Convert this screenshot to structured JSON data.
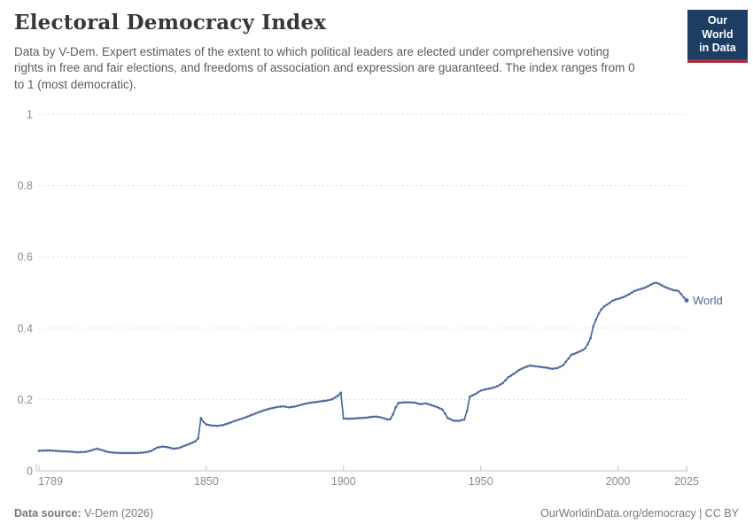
{
  "header": {
    "title": "Electoral Democracy Index",
    "subtitle": "Data by V-Dem. Expert estimates of the extent to which political leaders are elected under comprehensive voting rights in free and fair elections, and freedoms of association and expression are guaranteed. The index ranges from 0 to 1 (most democratic)."
  },
  "logo": {
    "line1": "Our World",
    "line2": "in Data"
  },
  "footer": {
    "source_label": "Data source:",
    "source_value": "V-Dem (2026)",
    "right_text": "OurWorldinData.org/democracy | CC BY"
  },
  "colors": {
    "line": "#4c6a9c",
    "series_label": "#4c6a9c",
    "grid": "#dcdcdc",
    "axis": "#c4c4c4",
    "tick_text": "#8b8b8b",
    "logo_bg": "#1d3d63",
    "logo_red": "#a82c3b"
  },
  "chart_data": {
    "type": "line",
    "title": "Electoral Democracy Index",
    "xlabel": "",
    "ylabel": "",
    "xlim": [
      1789,
      2025
    ],
    "ylim": [
      0,
      1
    ],
    "grid": "horizontal-dashed",
    "legend": "end-of-line-label",
    "x_ticks": [
      1789,
      1850,
      1900,
      1950,
      2000,
      2025
    ],
    "x_tick_labels": [
      "1789",
      "1850",
      "1900",
      "1950",
      "2000",
      "2025"
    ],
    "y_ticks": [
      0,
      0.2,
      0.4,
      0.6,
      0.8,
      1
    ],
    "y_tick_labels": [
      "0",
      "0.2",
      "0.4",
      "0.6",
      "0.8",
      "1"
    ],
    "series": [
      {
        "name": "World",
        "points": [
          [
            1789,
            0.056
          ],
          [
            1791,
            0.057
          ],
          [
            1793,
            0.057
          ],
          [
            1795,
            0.056
          ],
          [
            1797,
            0.055
          ],
          [
            1800,
            0.054
          ],
          [
            1803,
            0.052
          ],
          [
            1806,
            0.053
          ],
          [
            1808,
            0.057
          ],
          [
            1810,
            0.062
          ],
          [
            1812,
            0.058
          ],
          [
            1814,
            0.053
          ],
          [
            1816,
            0.051
          ],
          [
            1819,
            0.05
          ],
          [
            1822,
            0.05
          ],
          [
            1825,
            0.05
          ],
          [
            1828,
            0.052
          ],
          [
            1830,
            0.056
          ],
          [
            1832,
            0.065
          ],
          [
            1834,
            0.068
          ],
          [
            1836,
            0.066
          ],
          [
            1838,
            0.062
          ],
          [
            1840,
            0.064
          ],
          [
            1842,
            0.07
          ],
          [
            1844,
            0.076
          ],
          [
            1846,
            0.083
          ],
          [
            1847,
            0.091
          ],
          [
            1848,
            0.148
          ],
          [
            1849,
            0.137
          ],
          [
            1850,
            0.13
          ],
          [
            1852,
            0.127
          ],
          [
            1854,
            0.126
          ],
          [
            1856,
            0.128
          ],
          [
            1858,
            0.133
          ],
          [
            1860,
            0.139
          ],
          [
            1862,
            0.144
          ],
          [
            1864,
            0.149
          ],
          [
            1866,
            0.155
          ],
          [
            1868,
            0.161
          ],
          [
            1870,
            0.167
          ],
          [
            1872,
            0.172
          ],
          [
            1874,
            0.176
          ],
          [
            1876,
            0.179
          ],
          [
            1878,
            0.181
          ],
          [
            1880,
            0.178
          ],
          [
            1882,
            0.18
          ],
          [
            1884,
            0.184
          ],
          [
            1886,
            0.188
          ],
          [
            1888,
            0.191
          ],
          [
            1890,
            0.193
          ],
          [
            1892,
            0.195
          ],
          [
            1894,
            0.197
          ],
          [
            1896,
            0.201
          ],
          [
            1898,
            0.211
          ],
          [
            1899,
            0.219
          ],
          [
            1900,
            0.147
          ],
          [
            1902,
            0.146
          ],
          [
            1904,
            0.147
          ],
          [
            1906,
            0.148
          ],
          [
            1908,
            0.149
          ],
          [
            1910,
            0.151
          ],
          [
            1912,
            0.152
          ],
          [
            1914,
            0.149
          ],
          [
            1916,
            0.144
          ],
          [
            1917,
            0.145
          ],
          [
            1918,
            0.158
          ],
          [
            1919,
            0.178
          ],
          [
            1920,
            0.19
          ],
          [
            1922,
            0.192
          ],
          [
            1924,
            0.192
          ],
          [
            1926,
            0.191
          ],
          [
            1928,
            0.187
          ],
          [
            1930,
            0.189
          ],
          [
            1932,
            0.184
          ],
          [
            1934,
            0.179
          ],
          [
            1936,
            0.172
          ],
          [
            1937,
            0.16
          ],
          [
            1938,
            0.148
          ],
          [
            1940,
            0.141
          ],
          [
            1942,
            0.14
          ],
          [
            1944,
            0.144
          ],
          [
            1945,
            0.168
          ],
          [
            1946,
            0.208
          ],
          [
            1948,
            0.215
          ],
          [
            1950,
            0.225
          ],
          [
            1952,
            0.229
          ],
          [
            1954,
            0.232
          ],
          [
            1956,
            0.237
          ],
          [
            1958,
            0.246
          ],
          [
            1960,
            0.262
          ],
          [
            1962,
            0.272
          ],
          [
            1964,
            0.283
          ],
          [
            1966,
            0.29
          ],
          [
            1968,
            0.295
          ],
          [
            1970,
            0.293
          ],
          [
            1972,
            0.291
          ],
          [
            1974,
            0.289
          ],
          [
            1976,
            0.286
          ],
          [
            1978,
            0.288
          ],
          [
            1980,
            0.296
          ],
          [
            1982,
            0.315
          ],
          [
            1983,
            0.325
          ],
          [
            1985,
            0.331
          ],
          [
            1987,
            0.338
          ],
          [
            1988,
            0.343
          ],
          [
            1989,
            0.355
          ],
          [
            1990,
            0.372
          ],
          [
            1991,
            0.405
          ],
          [
            1992,
            0.424
          ],
          [
            1993,
            0.441
          ],
          [
            1994,
            0.453
          ],
          [
            1995,
            0.461
          ],
          [
            1996,
            0.466
          ],
          [
            1997,
            0.471
          ],
          [
            1998,
            0.477
          ],
          [
            1999,
            0.48
          ],
          [
            2000,
            0.482
          ],
          [
            2002,
            0.487
          ],
          [
            2004,
            0.495
          ],
          [
            2006,
            0.504
          ],
          [
            2008,
            0.509
          ],
          [
            2010,
            0.514
          ],
          [
            2012,
            0.522
          ],
          [
            2013,
            0.526
          ],
          [
            2014,
            0.527
          ],
          [
            2015,
            0.524
          ],
          [
            2016,
            0.52
          ],
          [
            2017,
            0.516
          ],
          [
            2018,
            0.513
          ],
          [
            2019,
            0.51
          ],
          [
            2020,
            0.507
          ],
          [
            2021,
            0.506
          ],
          [
            2022,
            0.504
          ],
          [
            2023,
            0.496
          ],
          [
            2024,
            0.486
          ],
          [
            2025,
            0.478
          ]
        ]
      }
    ]
  }
}
